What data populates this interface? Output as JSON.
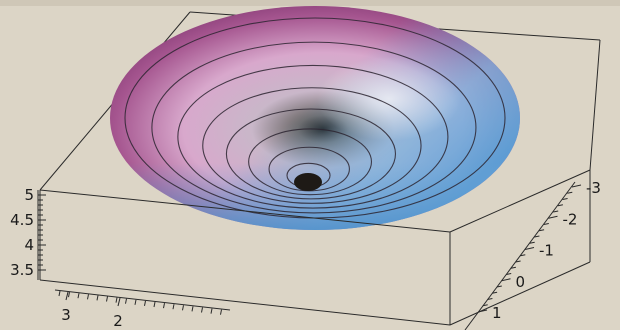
{
  "chart_data": {
    "type": "surface3d",
    "title": "",
    "surface": "bowl-shaped potential surface with concentric contour lines",
    "contour_count": 8,
    "z_ticks": [
      "3.5",
      "4",
      "4.5",
      "5"
    ],
    "y_ticks": [
      "-3",
      "-2",
      "-1",
      "0",
      "1"
    ],
    "x_ticks": [
      "3",
      "2"
    ],
    "colors": {
      "rim": "#8c3f7a",
      "mid": "#d9b7d3",
      "highlight": "#f3e6ef",
      "cool": "#6aa8d8",
      "center": "#1e1a16"
    }
  }
}
